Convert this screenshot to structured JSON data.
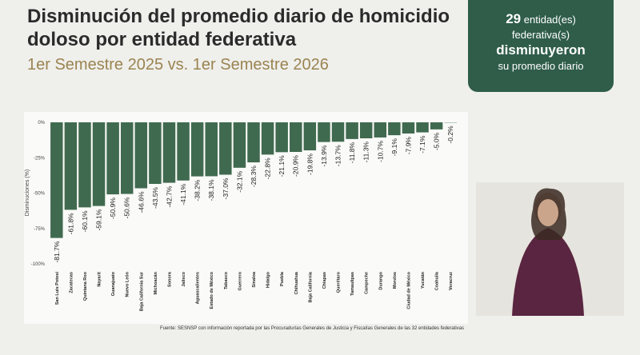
{
  "chart_data": {
    "type": "bar",
    "title": "Disminución del promedio diario de homicidio doloso por entidad federativa",
    "subtitle": "1er Semestre 2025 vs. 1er Semestre 2026",
    "y_label": "Disminuciones (%)",
    "color": "#406a4f",
    "categories": [
      "San Luis Potosí",
      "Zacatecas",
      "Quintana Roo",
      "Nayarit",
      "Guanajuato",
      "Nuevo León",
      "Baja California Sur",
      "Michoacán",
      "Sonora",
      "Jalisco",
      "Aguascalientes",
      "Estado de México",
      "Tabasco",
      "Guerrero",
      "Sinaloa",
      "Hidalgo",
      "Puebla",
      "Chihuahua",
      "Baja California",
      "Chiapas",
      "Querétaro",
      "Tamaulipas",
      "Campeche",
      "Durango",
      "Morelos",
      "Ciudad de México",
      "Yucatán",
      "Coahuila",
      "Veracruz"
    ],
    "values": [
      -81.7,
      -61.8,
      -60.1,
      -59.1,
      -50.9,
      -50.6,
      -46.6,
      -43.5,
      -42.7,
      -41.1,
      -38.2,
      -38.1,
      -37.0,
      -32.1,
      -28.3,
      -22.8,
      -21.1,
      -20.9,
      -19.8,
      -13.9,
      -13.7,
      -11.8,
      -11.3,
      -10.7,
      -9.1,
      -7.9,
      -7.1,
      -5.0,
      -0.2
    ],
    "value_labels": [
      "-81.7%",
      "-61.8%",
      "-60.1%",
      "-59.1%",
      "-50.9%",
      "-50.6%",
      "-46.6%",
      "-43.5%",
      "-42.7%",
      "-41.1%",
      "-38.2%",
      "-38.1%",
      "-37.0%",
      "-32.1%",
      "-28.3%",
      "-22.8%",
      "-21.1%",
      "-20.9%",
      "-19.8%",
      "-13.9%",
      "-13.7%",
      "-11.8%",
      "-11.3%",
      "-10.7%",
      "-9.1%",
      "-7.9%",
      "-7.1%",
      "-5.0%",
      "-0.2%"
    ],
    "ylim": [
      -100,
      0
    ],
    "yticks": [
      {
        "value": 0,
        "label": "0%"
      },
      {
        "value": -25,
        "label": "-25%"
      },
      {
        "value": -50,
        "label": "-50%"
      },
      {
        "value": -75,
        "label": "-75%"
      },
      {
        "value": -100,
        "label": "-100%"
      }
    ],
    "grid": false,
    "source": "Fuente: SESNSP con información reportada por las Procuradurías Generales de Justicia y Fiscalías Generales de las 32 entidades federativas"
  },
  "callout": {
    "count": "29",
    "line1": "entidad(es)",
    "line2": "federativa(s)",
    "line3": "disminuyeron",
    "line4": "su promedio diario"
  }
}
